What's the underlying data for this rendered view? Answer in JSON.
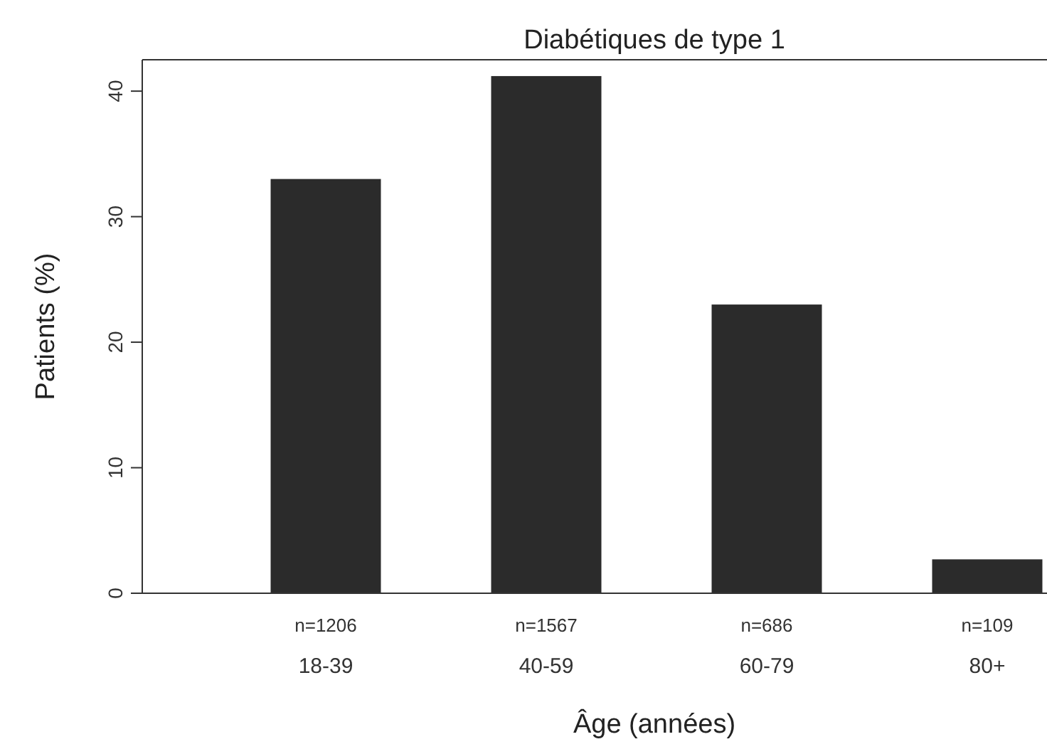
{
  "chart_data": {
    "type": "bar",
    "title": "Diabétiques de type 1",
    "xlabel": "Âge (années)",
    "ylabel": "Patients (%)",
    "categories": [
      "n=1206\n18-39",
      "n=1567\n40-59",
      "n=686\n60-79",
      "n=109\n80+"
    ],
    "values": [
      33,
      41.2,
      23,
      2.7
    ],
    "color": "#2b2b2b",
    "ylim": [
      0,
      42.5
    ],
    "yticks": [
      0,
      10,
      20,
      30,
      40
    ],
    "grid": false
  }
}
